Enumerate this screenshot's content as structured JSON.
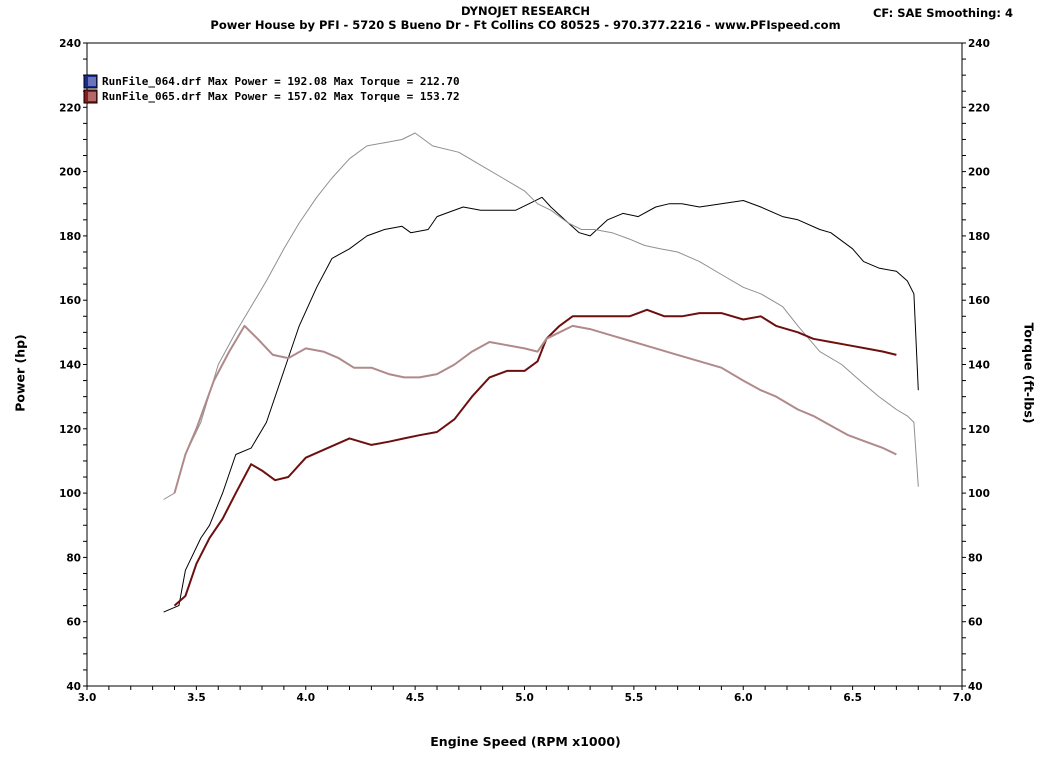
{
  "header": {
    "title": "DYNOJET RESEARCH",
    "subtitle": "Power House by PFI - 5720 S Bueno Dr - Ft Collins CO 80525 - 970.377.2216 - www.PFIspeed.com",
    "cf_label": "CF: SAE  Smoothing: 4"
  },
  "chart_data": {
    "type": "line",
    "title": "DYNOJET RESEARCH",
    "xlabel": "Engine Speed (RPM x1000)",
    "ylabel": "Power (hp)",
    "y2label": "Torque (ft-lbs)",
    "xlim": [
      3.0,
      7.0
    ],
    "ylim": [
      40,
      240
    ],
    "xticks": [
      "3.0",
      "3.5",
      "4.0",
      "4.5",
      "5.0",
      "5.5",
      "6.0",
      "6.5",
      "7.0"
    ],
    "yticks": [
      "40",
      "60",
      "80",
      "100",
      "120",
      "140",
      "160",
      "180",
      "200",
      "220",
      "240"
    ],
    "y2ticks": [
      "40",
      "60",
      "80",
      "100",
      "120",
      "140",
      "160",
      "180",
      "200",
      "220",
      "240"
    ],
    "grid": true,
    "legend": [
      {
        "text": "RunFile_064.drf Max Power = 192.08    Max Torque = 212.70",
        "color": "#1b2a8f"
      },
      {
        "text": "RunFile_065.drf Max Power = 157.02    Max Torque = 153.72",
        "color": "#8b1a1a"
      }
    ],
    "series": [
      {
        "name": "RunFile_064.drf Power",
        "color": "#000000",
        "width": 1,
        "x": [
          3.35,
          3.42,
          3.45,
          3.52,
          3.56,
          3.62,
          3.68,
          3.75,
          3.82,
          3.9,
          3.97,
          4.05,
          4.12,
          4.2,
          4.28,
          4.36,
          4.44,
          4.48,
          4.56,
          4.6,
          4.64,
          4.72,
          4.8,
          4.9,
          4.96,
          5.02,
          5.08,
          5.12,
          5.2,
          5.25,
          5.3,
          5.38,
          5.45,
          5.52,
          5.6,
          5.66,
          5.72,
          5.8,
          5.9,
          6.0,
          6.08,
          6.18,
          6.25,
          6.35,
          6.4,
          6.5,
          6.55,
          6.62,
          6.7,
          6.75,
          6.78,
          6.8
        ],
        "y": [
          63,
          65,
          76,
          86,
          90,
          100,
          112,
          114,
          122,
          138,
          152,
          164,
          173,
          176,
          180,
          182,
          183,
          181,
          182,
          186,
          187,
          189,
          188,
          188,
          188,
          190,
          192,
          189,
          184,
          181,
          180,
          185,
          187,
          186,
          189,
          190,
          190,
          189,
          190,
          191,
          189,
          186,
          185,
          182,
          181,
          176,
          172,
          170,
          169,
          166,
          162,
          132
        ]
      },
      {
        "name": "RunFile_064.drf Torque",
        "color": "#909090",
        "width": 1,
        "x": [
          3.35,
          3.4,
          3.45,
          3.52,
          3.6,
          3.68,
          3.75,
          3.82,
          3.9,
          3.97,
          4.05,
          4.12,
          4.2,
          4.28,
          4.36,
          4.44,
          4.5,
          4.58,
          4.7,
          4.8,
          4.9,
          5.0,
          5.06,
          5.12,
          5.2,
          5.26,
          5.32,
          5.4,
          5.48,
          5.55,
          5.62,
          5.7,
          5.8,
          5.9,
          6.0,
          6.08,
          6.18,
          6.25,
          6.35,
          6.45,
          6.55,
          6.62,
          6.7,
          6.75,
          6.78,
          6.8
        ],
        "y": [
          98,
          100,
          112,
          122,
          140,
          150,
          158,
          166,
          176,
          184,
          192,
          198,
          204,
          208,
          209,
          210,
          212,
          208,
          206,
          202,
          198,
          194,
          190,
          188,
          184,
          182,
          182,
          181,
          179,
          177,
          176,
          175,
          172,
          168,
          164,
          162,
          158,
          152,
          144,
          140,
          134,
          130,
          126,
          124,
          122,
          102
        ]
      },
      {
        "name": "RunFile_065.drf Power",
        "color": "#6e0f0f",
        "width": 2,
        "x": [
          3.4,
          3.45,
          3.5,
          3.56,
          3.62,
          3.68,
          3.75,
          3.8,
          3.86,
          3.92,
          4.0,
          4.1,
          4.2,
          4.3,
          4.38,
          4.45,
          4.52,
          4.6,
          4.68,
          4.76,
          4.84,
          4.92,
          5.0,
          5.06,
          5.1,
          5.16,
          5.22,
          5.3,
          5.38,
          5.48,
          5.56,
          5.64,
          5.72,
          5.8,
          5.9,
          6.0,
          6.08,
          6.15,
          6.25,
          6.32,
          6.4,
          6.48,
          6.56,
          6.64,
          6.7
        ],
        "y": [
          65,
          68,
          78,
          86,
          92,
          100,
          109,
          107,
          104,
          105,
          111,
          114,
          117,
          115,
          116,
          117,
          118,
          119,
          123,
          130,
          136,
          138,
          138,
          141,
          148,
          152,
          155,
          155,
          155,
          155,
          157,
          155,
          155,
          156,
          156,
          154,
          155,
          152,
          150,
          148,
          147,
          146,
          145,
          144,
          143
        ]
      },
      {
        "name": "RunFile_065.drf Torque",
        "color": "#b08a8a",
        "width": 2,
        "x": [
          3.4,
          3.45,
          3.5,
          3.58,
          3.65,
          3.72,
          3.78,
          3.85,
          3.92,
          4.0,
          4.08,
          4.15,
          4.22,
          4.3,
          4.38,
          4.45,
          4.52,
          4.6,
          4.68,
          4.76,
          4.84,
          4.92,
          5.0,
          5.06,
          5.1,
          5.16,
          5.22,
          5.3,
          5.4,
          5.5,
          5.6,
          5.7,
          5.8,
          5.9,
          6.0,
          6.08,
          6.15,
          6.25,
          6.32,
          6.4,
          6.48,
          6.56,
          6.64,
          6.7
        ],
        "y": [
          100,
          112,
          120,
          135,
          144,
          152,
          148,
          143,
          142,
          145,
          144,
          142,
          139,
          139,
          137,
          136,
          136,
          137,
          140,
          144,
          147,
          146,
          145,
          144,
          148,
          150,
          152,
          151,
          149,
          147,
          145,
          143,
          141,
          139,
          135,
          132,
          130,
          126,
          124,
          121,
          118,
          116,
          114,
          112
        ]
      }
    ]
  }
}
